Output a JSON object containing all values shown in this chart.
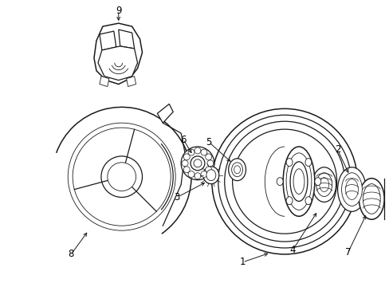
{
  "background_color": "#ffffff",
  "line_color": "#1a1a1a",
  "label_color": "#000000",
  "figsize": [
    4.89,
    3.6
  ],
  "dpi": 100,
  "lw_main": 0.9,
  "lw_thin": 0.6,
  "lw_thick": 1.1
}
